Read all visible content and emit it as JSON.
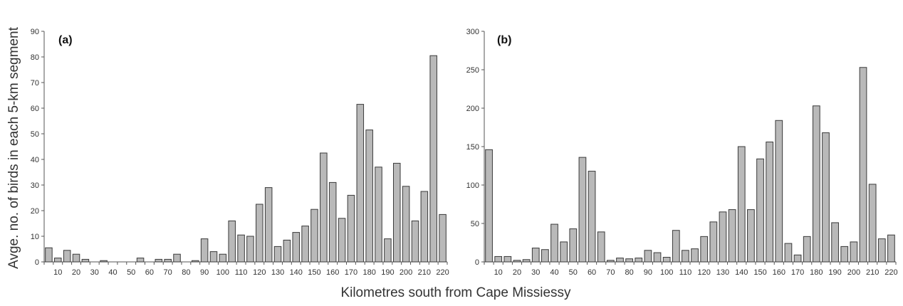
{
  "ylabel": "Avge. no. of birds in each 5-km segment",
  "xlabel": "Kilometres south from Cape Missiessy",
  "colors": {
    "bar_fill": "#b9b9b9",
    "bar_stroke": "#3a3a3a",
    "axis": "#555555"
  },
  "chart_data": [
    {
      "type": "bar",
      "panel_label": "(a)",
      "x": [
        5,
        10,
        15,
        20,
        25,
        30,
        35,
        40,
        45,
        50,
        55,
        60,
        65,
        70,
        75,
        80,
        85,
        90,
        95,
        100,
        105,
        110,
        115,
        120,
        125,
        130,
        135,
        140,
        145,
        150,
        155,
        160,
        165,
        170,
        175,
        180,
        185,
        190,
        195,
        200,
        205,
        210,
        215,
        220
      ],
      "values": [
        5.5,
        1.5,
        4.5,
        3,
        1,
        0,
        0.5,
        0,
        0,
        0,
        1.5,
        0,
        1,
        1,
        3,
        0,
        0.5,
        9,
        4,
        3,
        16,
        10.5,
        10,
        22.5,
        29,
        6,
        8.5,
        11.5,
        14,
        20.5,
        42.5,
        31,
        17,
        26,
        61.5,
        51.5,
        37,
        9,
        38.5,
        29.5,
        16,
        27.5,
        80.5,
        18.5
      ],
      "x_ticks": [
        "10",
        "20",
        "30",
        "40",
        "50",
        "60",
        "70",
        "80",
        "90",
        "100",
        "110",
        "120",
        "130",
        "140",
        "150",
        "160",
        "170",
        "180",
        "190",
        "200",
        "210",
        "220"
      ],
      "y_ticks": [
        "0",
        "10",
        "20",
        "30",
        "40",
        "50",
        "60",
        "70",
        "80",
        "90"
      ],
      "ylim": [
        0,
        90
      ],
      "grid": false
    },
    {
      "type": "bar",
      "panel_label": "(b)",
      "x": [
        5,
        10,
        15,
        20,
        25,
        30,
        35,
        40,
        45,
        50,
        55,
        60,
        65,
        70,
        75,
        80,
        85,
        90,
        95,
        100,
        105,
        110,
        115,
        120,
        125,
        130,
        135,
        140,
        145,
        150,
        155,
        160,
        165,
        170,
        175,
        180,
        185,
        190,
        195,
        200,
        205,
        210,
        215,
        220
      ],
      "values": [
        146,
        7,
        7,
        2,
        3,
        18,
        16,
        49,
        26,
        43,
        136,
        118,
        39,
        2,
        5,
        4,
        5,
        15,
        12,
        6,
        41,
        15,
        17,
        33,
        52,
        65,
        68,
        150,
        68,
        134,
        156,
        184,
        24,
        9,
        33,
        203,
        168,
        51,
        20,
        26,
        253,
        101,
        30,
        35
      ],
      "x_ticks": [
        "10",
        "20",
        "30",
        "40",
        "50",
        "60",
        "70",
        "80",
        "90",
        "100",
        "110",
        "120",
        "130",
        "140",
        "150",
        "160",
        "170",
        "180",
        "190",
        "200",
        "210",
        "220"
      ],
      "y_ticks": [
        "0",
        "50",
        "100",
        "150",
        "200",
        "250",
        "300"
      ],
      "ylim": [
        0,
        300
      ],
      "grid": false
    }
  ]
}
